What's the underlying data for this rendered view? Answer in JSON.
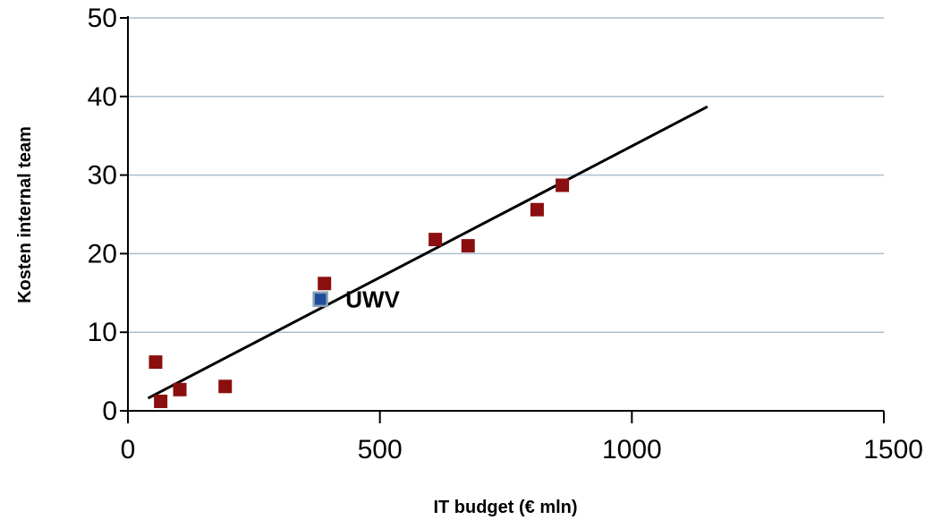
{
  "chart_data": {
    "type": "scatter",
    "xlabel": "IT budget (€ mln)",
    "ylabel": "Kosten internal team",
    "xlim": [
      0,
      1500
    ],
    "ylim": [
      0,
      50
    ],
    "x_ticks": [
      "0",
      "500",
      "1000",
      "1500"
    ],
    "y_ticks": [
      "0",
      "10",
      "20",
      "30",
      "40",
      "50"
    ],
    "grid": "horizontal",
    "series": [
      {
        "color": "#8b0f0f",
        "points": [
          {
            "x": 55,
            "y": 6.2
          },
          {
            "x": 65,
            "y": 1.2
          },
          {
            "x": 103,
            "y": 2.7
          },
          {
            "x": 193,
            "y": 3.1
          },
          {
            "x": 390,
            "y": 16.2
          },
          {
            "x": 610,
            "y": 21.8
          },
          {
            "x": 675,
            "y": 21.0
          },
          {
            "x": 812,
            "y": 25.6
          },
          {
            "x": 862,
            "y": 28.7
          }
        ]
      },
      {
        "color": "#1f4e9c",
        "points": [
          {
            "x": 382,
            "y": 14.2,
            "label": "UWV"
          }
        ]
      }
    ],
    "trendline": {
      "color": "#000000",
      "from": {
        "x": 40,
        "y": 1.6
      },
      "to": {
        "x": 1150,
        "y": 38.7
      }
    }
  }
}
